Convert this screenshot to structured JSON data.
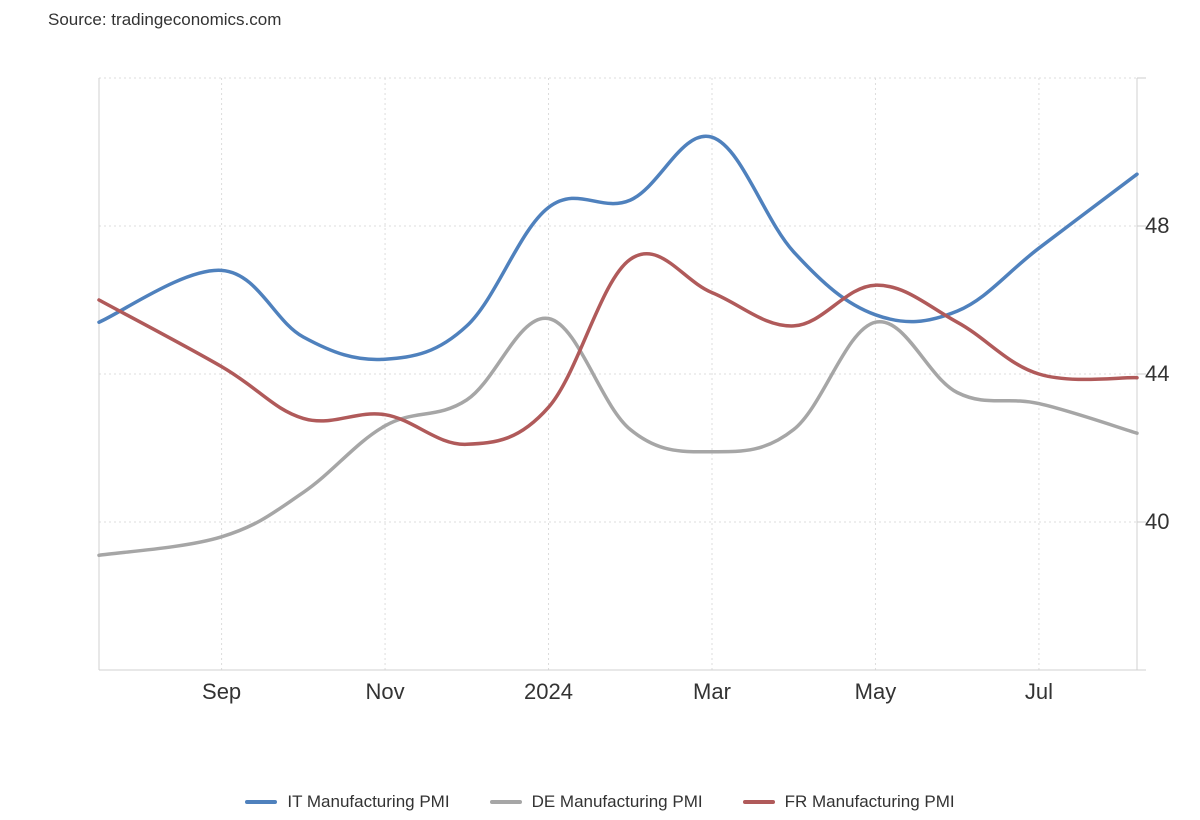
{
  "source": "Source: tradingeconomics.com",
  "chart_data": {
    "type": "line",
    "x": [
      "2023-08",
      "2023-09",
      "2023-10",
      "2023-11",
      "2023-12",
      "2024-01",
      "2024-02",
      "2024-03",
      "2024-04",
      "2024-05",
      "2024-06",
      "2024-07",
      "2024-08"
    ],
    "x_tick_labels": [
      "Sep",
      "Nov",
      "2024",
      "Mar",
      "May",
      "Jul"
    ],
    "x_tick_values": [
      "2023-09",
      "2023-11",
      "2024-01",
      "2024-03",
      "2024-05",
      "2024-07"
    ],
    "y_tick_labels": [
      "48",
      "44",
      "40"
    ],
    "y_tick_values": [
      48,
      44,
      40
    ],
    "ylim": [
      36,
      52
    ],
    "y_axis_side": "right",
    "grid": true,
    "legend_position": "bottom",
    "series": [
      {
        "name": "IT Manufacturing PMI",
        "color": "#4f81bd",
        "values": [
          45.4,
          46.8,
          45.0,
          44.4,
          45.3,
          48.5,
          48.7,
          50.4,
          47.3,
          45.6,
          45.7,
          47.4,
          49.4
        ]
      },
      {
        "name": "DE Manufacturing PMI",
        "color": "#a6a6a6",
        "values": [
          39.1,
          39.6,
          40.8,
          42.6,
          43.3,
          45.5,
          42.5,
          41.9,
          42.5,
          45.4,
          43.5,
          43.2,
          42.4
        ]
      },
      {
        "name": "FR Manufacturing PMI",
        "color": "#b05a5a",
        "values": [
          46.0,
          44.2,
          42.8,
          42.9,
          42.1,
          43.1,
          47.1,
          46.2,
          45.3,
          46.4,
          45.4,
          44.0,
          43.9
        ]
      }
    ]
  }
}
